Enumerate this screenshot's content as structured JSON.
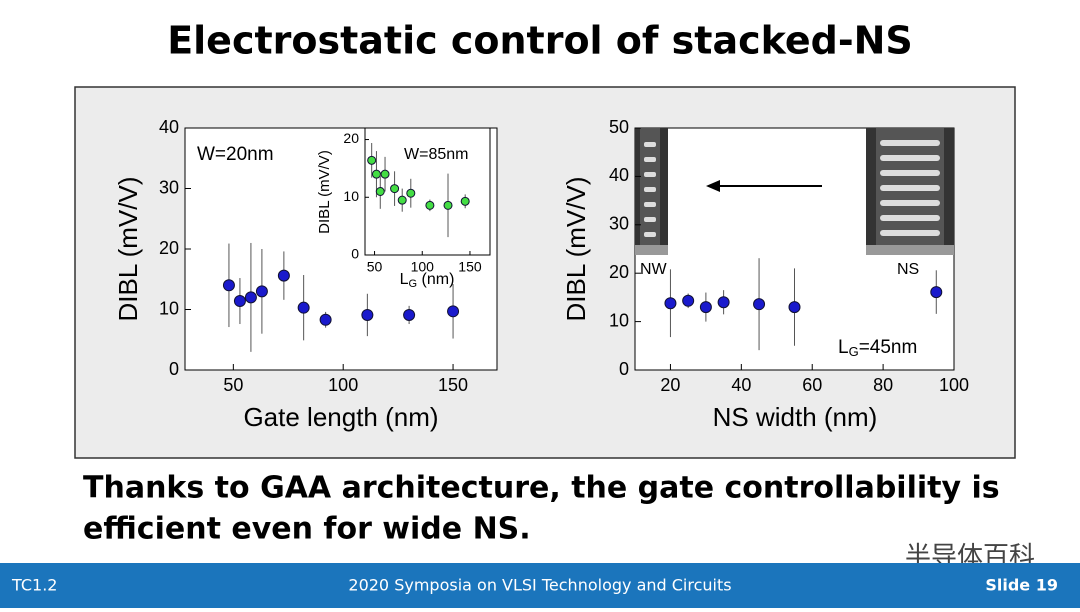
{
  "title": "Electrostatic control of stacked-NS",
  "caption": [
    "Thanks to GAA architecture, the gate controllability is",
    "efficient even for wide NS."
  ],
  "footer": {
    "left": "TC1.2",
    "center": "2020 Symposia on VLSI Technology and Circuits",
    "right": "Slide 19"
  },
  "watermark": "半导体百科",
  "chart_data": [
    {
      "type": "scatter",
      "x_label": "Gate length (nm)",
      "y_label": "DIBL (mV/V)",
      "annotation": "W=20nm",
      "color": "#1a1acc",
      "x": [
        48,
        53,
        58,
        63,
        73,
        82,
        92,
        111,
        130,
        150
      ],
      "values": [
        14,
        11.4,
        12,
        13,
        15.6,
        10.3,
        8.3,
        9.1,
        9.1,
        9.7
      ],
      "errors": [
        6.9,
        3.8,
        9,
        7,
        4,
        5.4,
        1.3,
        3.5,
        1.5,
        4.5
      ],
      "xlim": [
        28,
        170
      ],
      "ylim": [
        0,
        40
      ],
      "xticks": [
        50,
        100,
        150
      ],
      "yticks": [
        0,
        10,
        20,
        30,
        40
      ]
    },
    {
      "type": "scatter",
      "x_label": {
        "main": "L",
        "sub": "G",
        "rest": " (nm)"
      },
      "y_label": "DIBL (mV/V)",
      "annotation": "W=85nm",
      "color": "#44dd44",
      "x": [
        47,
        52,
        56,
        61,
        71,
        79,
        88,
        108,
        127,
        145
      ],
      "values": [
        16.4,
        14,
        11,
        14,
        11.5,
        9.5,
        10.7,
        8.6,
        8.6,
        9.3
      ],
      "errors": [
        3,
        4,
        3,
        3,
        3,
        2,
        2.5,
        1,
        5.5,
        1.2
      ],
      "xlim": [
        40,
        171
      ],
      "ylim": [
        0,
        22
      ],
      "xticks": [
        50,
        100,
        150
      ],
      "yticks": [
        0,
        10,
        20
      ]
    },
    {
      "type": "scatter",
      "x_label": "NS width (nm)",
      "y_label": "DIBL (mV/V)",
      "annotations": {
        "left": "NW",
        "right": "NS",
        "lg": {
          "main": "L",
          "sub": "G",
          "rest": "=45nm"
        }
      },
      "color": "#1a1acc",
      "x": [
        20,
        25,
        30,
        35,
        45,
        55,
        95
      ],
      "values": [
        13.8,
        14.3,
        13,
        14,
        13.6,
        13,
        16.1
      ],
      "errors": [
        7,
        1.5,
        3,
        2.5,
        9.5,
        8,
        4.5
      ],
      "xlim": [
        10,
        100
      ],
      "ylim": [
        0,
        50
      ],
      "xticks": [
        20,
        40,
        60,
        80,
        100
      ],
      "yticks": [
        0,
        10,
        20,
        30,
        40,
        50
      ]
    }
  ]
}
